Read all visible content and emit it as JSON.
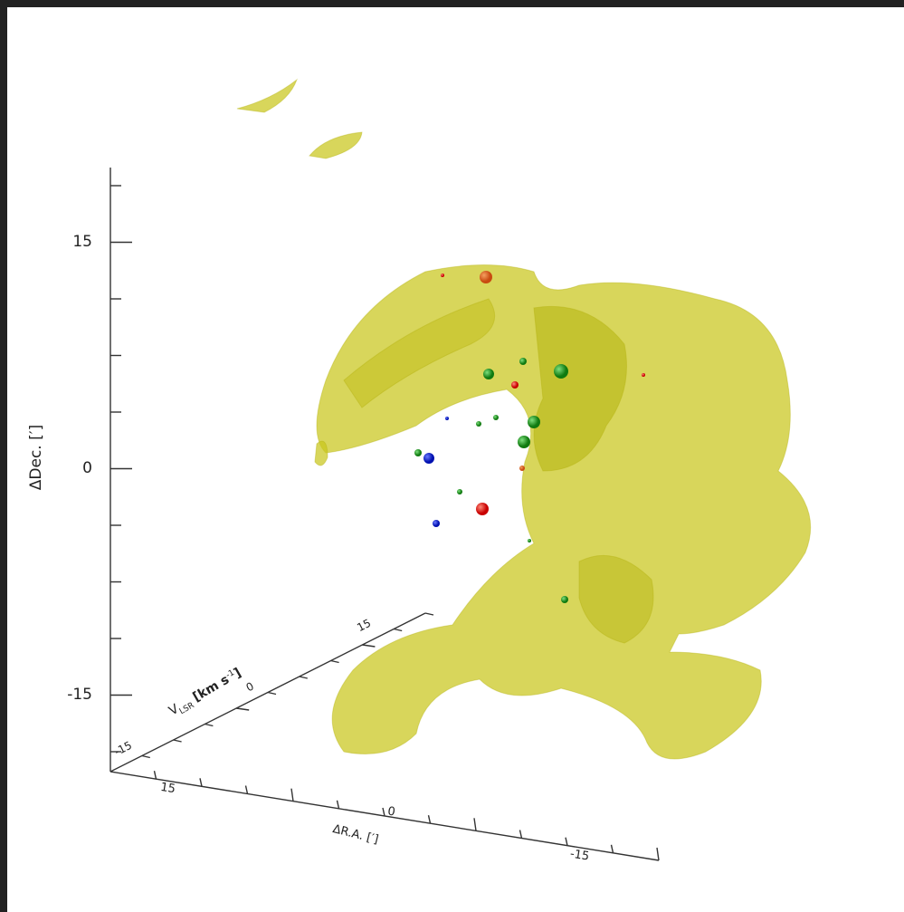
{
  "axes": {
    "dec": {
      "label": "ΔDec. [′]",
      "ticks": [
        15,
        0,
        -15
      ]
    },
    "vlsr": {
      "label": "V",
      "label_sub": "LSR",
      "label_unit": "[km s",
      "label_sup": "-1",
      "label_end": "]",
      "ticks": [
        15,
        0,
        -15
      ]
    },
    "ra": {
      "label": "ΔR.A. [′]",
      "ticks": [
        15,
        0,
        -15
      ]
    }
  }
}
